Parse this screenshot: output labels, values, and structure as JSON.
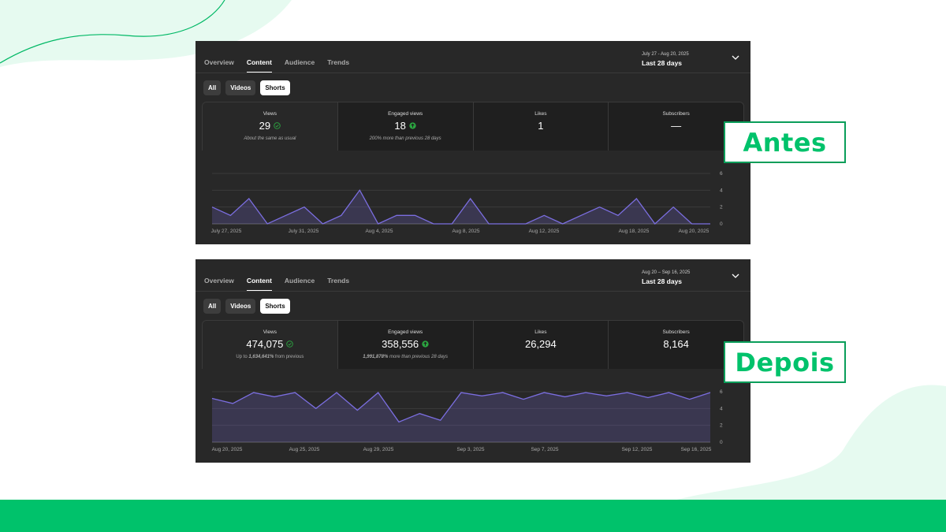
{
  "colors": {
    "accent_green": "#00c26b",
    "panel_bg": "#282828",
    "line": "#7b6ee0"
  },
  "panels": [
    {
      "tabs": [
        "Overview",
        "Content",
        "Audience",
        "Trends"
      ],
      "active_tab": "Content",
      "date_range": "July 27 - Aug 20, 2025",
      "period": "Last 28 days",
      "chips": [
        "All",
        "Videos",
        "Shorts"
      ],
      "active_chip": "Shorts",
      "metrics": [
        {
          "label": "Views",
          "value": "29",
          "icon": "check-circle-icon",
          "note": "About the same as usual"
        },
        {
          "label": "Engaged views",
          "value": "18",
          "icon": "arrow-up-circle-icon",
          "note": "200% more than previous 28 days"
        },
        {
          "label": "Likes",
          "value": "1",
          "note": ""
        },
        {
          "label": "Subscribers",
          "value": "—",
          "note": ""
        }
      ],
      "annotation": "Antes"
    },
    {
      "tabs": [
        "Overview",
        "Content",
        "Audience",
        "Trends"
      ],
      "active_tab": "Content",
      "date_range": "Aug 20 – Sep 16, 2025",
      "period": "Last 28 days",
      "chips": [
        "All",
        "Videos",
        "Shorts"
      ],
      "active_chip": "Shorts",
      "metrics": [
        {
          "label": "Views",
          "value": "474,075",
          "icon": "check-circle-icon",
          "note_prefix": "Up to ",
          "note_bold": "1,634,641%",
          "note_suffix": " from previous"
        },
        {
          "label": "Engaged views",
          "value": "358,556",
          "icon": "arrow-up-circle-icon",
          "note_bold": "1,991,878%",
          "note_suffix": " more than previous 28 days"
        },
        {
          "label": "Likes",
          "value": "26,294",
          "note": ""
        },
        {
          "label": "Subscribers",
          "value": "8,164",
          "note": ""
        }
      ],
      "annotation": "Depois"
    }
  ],
  "chart_data": [
    {
      "type": "area",
      "x_tick_labels": [
        "July 27, 2025",
        "July 31, 2025",
        "Aug 4, 2025",
        "Aug 8, 2025",
        "Aug 12, 2025",
        "Aug 18, 2025",
        "Aug 20, 2025"
      ],
      "y_ticks": [
        0,
        2,
        4,
        6
      ],
      "ylim": [
        0,
        6
      ],
      "grid": true,
      "series": [
        {
          "values": [
            2,
            1,
            3,
            0,
            1,
            2,
            0,
            1,
            4,
            0,
            1,
            1,
            0,
            0,
            3,
            0,
            0,
            0,
            1,
            0,
            1,
            2,
            1,
            3,
            0,
            2,
            0,
            0
          ]
        }
      ]
    },
    {
      "type": "area",
      "x_tick_labels": [
        "Aug 20, 2025",
        "Aug 25, 2025",
        "Aug 29, 2025",
        "Sep 3, 2025",
        "Sep 7, 2025",
        "Sep 12, 2025",
        "Sep 16, 2025"
      ],
      "y_ticks": [
        0,
        2,
        4,
        6
      ],
      "ylim": [
        0,
        6
      ],
      "grid": true,
      "series": [
        {
          "values": [
            5.2,
            4.6,
            5.9,
            5.4,
            5.9,
            4.0,
            5.9,
            3.8,
            5.9,
            2.4,
            3.4,
            2.6,
            5.9,
            5.5,
            5.9,
            5.1,
            5.9,
            5.4,
            5.9,
            5.5,
            5.9,
            5.3,
            5.9,
            5.1,
            5.9
          ]
        }
      ]
    }
  ]
}
